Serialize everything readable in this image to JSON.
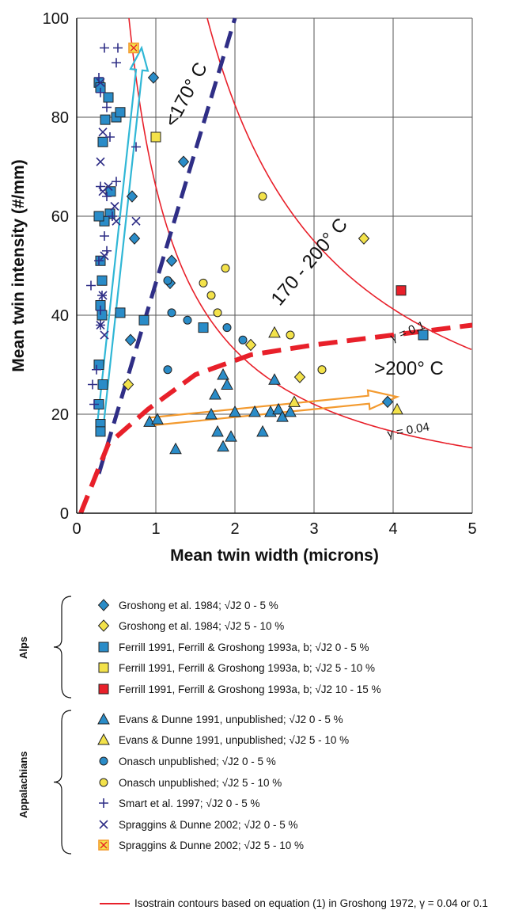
{
  "chart_data": {
    "type": "scatter",
    "xlabel": "Mean twin width (microns)",
    "ylabel": "Mean twin intensity (#/mm)",
    "xlim": [
      0,
      5
    ],
    "ylim": [
      0,
      100
    ],
    "xticks": [
      "0",
      "1",
      "2",
      "3",
      "4",
      "5"
    ],
    "yticks": [
      "0",
      "20",
      "40",
      "60",
      "80",
      "100"
    ],
    "grid": true,
    "annotations": [
      {
        "id": "lt170",
        "text": "<170° C",
        "x": 1.45,
        "y": 84,
        "rotate": -62
      },
      {
        "id": "170-200",
        "text": "170 - 200° C",
        "x": 3.0,
        "y": 50,
        "rotate": -50
      },
      {
        "id": "gt200",
        "text": ">200° C",
        "x": 4.2,
        "y": 28,
        "rotate": 0
      },
      {
        "id": "gamma01",
        "text": "γ = 0.1",
        "x": 4.2,
        "y": 36,
        "rotate": -22
      },
      {
        "id": "gamma004",
        "text": "γ = 0.04",
        "x": 4.2,
        "y": 16,
        "rotate": -10
      }
    ],
    "series": [
      {
        "name": "Groshong et al. 1984; √J2 0 - 5 %",
        "marker": "diamond",
        "color": "#2a8cc8",
        "points": [
          [
            0.97,
            88
          ],
          [
            1.35,
            71
          ],
          [
            0.7,
            64
          ],
          [
            0.73,
            55.5
          ],
          [
            1.2,
            51
          ],
          [
            1.18,
            46.5
          ],
          [
            0.68,
            35
          ],
          [
            3.93,
            22.5
          ]
        ]
      },
      {
        "name": "Groshong et al. 1984; √J2 5 - 10 %",
        "marker": "diamond",
        "color": "#f3e24a",
        "points": [
          [
            3.63,
            55.5
          ],
          [
            2.2,
            34
          ],
          [
            0.65,
            26
          ],
          [
            2.82,
            27.5
          ]
        ]
      },
      {
        "name": "Ferrill 1991, Ferrill & Groshong 1993a, b; √J2 0 - 5 %",
        "marker": "square",
        "color": "#2a8cc8",
        "points": [
          [
            0.28,
            87
          ],
          [
            0.3,
            86
          ],
          [
            0.4,
            84
          ],
          [
            0.5,
            80
          ],
          [
            0.55,
            81
          ],
          [
            0.36,
            79.5
          ],
          [
            0.33,
            75
          ],
          [
            0.43,
            65
          ],
          [
            0.42,
            60.5
          ],
          [
            0.35,
            59
          ],
          [
            0.28,
            60
          ],
          [
            0.32,
            47
          ],
          [
            0.3,
            51
          ],
          [
            0.3,
            42
          ],
          [
            0.32,
            40
          ],
          [
            0.28,
            30
          ],
          [
            0.33,
            26
          ],
          [
            0.28,
            22
          ],
          [
            0.3,
            18
          ],
          [
            0.3,
            16.5
          ],
          [
            0.55,
            40.5
          ],
          [
            0.85,
            39
          ],
          [
            1.6,
            37.5
          ],
          [
            4.38,
            36
          ]
        ]
      },
      {
        "name": "Ferrill 1991, Ferrill & Groshong 1993a, b; √J2 5 - 10 %",
        "marker": "square",
        "color": "#f3e24a",
        "points": [
          [
            1.0,
            76
          ]
        ]
      },
      {
        "name": "Ferrill 1991, Ferrill & Groshong 1993a, b; √J2 10 - 15 %",
        "marker": "square",
        "color": "#e8202a",
        "points": [
          [
            4.1,
            45
          ]
        ]
      },
      {
        "name": "Evans & Dunne 1991, unpublished; √J2 0 - 5 %",
        "marker": "triangle",
        "color": "#2a8cc8",
        "points": [
          [
            0.92,
            18.5
          ],
          [
            1.02,
            19
          ],
          [
            1.25,
            13
          ],
          [
            1.7,
            20
          ],
          [
            1.75,
            24
          ],
          [
            1.78,
            16.5
          ],
          [
            1.85,
            28
          ],
          [
            1.9,
            26
          ],
          [
            1.85,
            13.5
          ],
          [
            1.95,
            15.5
          ],
          [
            2.0,
            20.5
          ],
          [
            2.25,
            20.5
          ],
          [
            2.35,
            16.5
          ],
          [
            2.45,
            20.5
          ],
          [
            2.5,
            27
          ],
          [
            2.55,
            21
          ],
          [
            2.6,
            19.5
          ],
          [
            2.7,
            20.5
          ]
        ]
      },
      {
        "name": "Evans & Dunne 1991, unpublished; √J2 5 - 10 %",
        "marker": "triangle",
        "color": "#f3e24a",
        "points": [
          [
            2.5,
            36.5
          ],
          [
            2.75,
            22.5
          ],
          [
            4.05,
            21
          ]
        ]
      },
      {
        "name": "Onasch unpublished; √J2 0 - 5 %",
        "marker": "circle",
        "color": "#2a8cc8",
        "points": [
          [
            1.15,
            47
          ],
          [
            1.2,
            40.5
          ],
          [
            1.4,
            39
          ],
          [
            1.9,
            37.5
          ],
          [
            2.1,
            35
          ],
          [
            1.15,
            29
          ]
        ]
      },
      {
        "name": "Onasch unpublished; √J2 5 - 10 %",
        "marker": "circle",
        "color": "#f3e24a",
        "points": [
          [
            2.35,
            64
          ],
          [
            1.88,
            49.5
          ],
          [
            1.6,
            46.5
          ],
          [
            1.7,
            44
          ],
          [
            1.78,
            40.5
          ],
          [
            2.7,
            36
          ],
          [
            3.1,
            29
          ]
        ]
      },
      {
        "name": "Smart et al. 1997; √J2 0 - 5 %",
        "marker": "plus",
        "color": "#2f2e86",
        "points": [
          [
            0.35,
            94
          ],
          [
            0.52,
            94
          ],
          [
            0.5,
            91
          ],
          [
            0.28,
            88
          ],
          [
            0.3,
            85
          ],
          [
            0.38,
            82
          ],
          [
            0.42,
            76
          ],
          [
            0.75,
            74
          ],
          [
            0.3,
            66
          ],
          [
            0.38,
            64
          ],
          [
            0.5,
            67
          ],
          [
            0.45,
            60
          ],
          [
            0.35,
            56
          ],
          [
            0.38,
            53
          ],
          [
            0.28,
            51
          ],
          [
            0.18,
            46
          ],
          [
            0.32,
            44
          ],
          [
            0.3,
            41
          ],
          [
            0.3,
            38
          ],
          [
            0.25,
            29
          ],
          [
            0.2,
            26
          ],
          [
            0.22,
            22
          ]
        ]
      },
      {
        "name": "Spraggins & Dunne 2002; √J2 0 - 5 %",
        "marker": "x",
        "color": "#2f2e86",
        "points": [
          [
            0.3,
            87
          ],
          [
            0.33,
            77
          ],
          [
            0.3,
            71
          ],
          [
            0.33,
            65
          ],
          [
            0.4,
            66
          ],
          [
            0.48,
            62
          ],
          [
            0.5,
            59
          ],
          [
            0.75,
            59
          ],
          [
            0.35,
            52
          ],
          [
            0.33,
            44
          ],
          [
            0.3,
            38
          ],
          [
            0.35,
            36
          ]
        ]
      },
      {
        "name": "Spraggins & Dunne 2002; √J2 5 - 10 %",
        "marker": "boxx",
        "color": "#f39a2f",
        "points": [
          [
            0.72,
            94
          ]
        ]
      }
    ],
    "legend_groups": [
      {
        "label": "Alps",
        "entries": [
          "Groshong et al. 1984; √J2  0 - 5 %",
          "Groshong et al. 1984; √J2  5 - 10 %",
          "Ferrill 1991, Ferrill & Groshong 1993a, b; √J2  0 - 5 %",
          "Ferrill 1991, Ferrill & Groshong 1993a, b; √J2  5 - 10 %",
          "Ferrill 1991, Ferrill & Groshong 1993a, b; √J2  10 - 15 %"
        ]
      },
      {
        "label": "Appalachians",
        "entries": [
          "Evans & Dunne 1991, unpublished; √J2  0 - 5 %",
          "Evans & Dunne 1991, unpublished; √J2  5 - 10 %",
          "Onasch unpublished; √J2  0 - 5 %",
          "Onasch unpublished; √J2  5 - 10 %",
          "Smart et al. 1997; √J2  0 - 5 %",
          "Spraggins & Dunne 2002; √J2  0 - 5 %",
          "Spraggins & Dunne 2002; √J2  5 - 10 %"
        ]
      }
    ],
    "isostrain_label": "Isostrain contours based on equation (1) in Groshong 1972, γ = 0.04 or 0.1",
    "curves": {
      "isostrain": [
        {
          "gamma": 0.1,
          "k": 165
        },
        {
          "gamma": 0.04,
          "k": 66
        }
      ],
      "lt170_line": [
        [
          0.28,
          8
        ],
        [
          2.0,
          100
        ]
      ],
      "red_dashed": [
        [
          0.05,
          0
        ],
        [
          0.4,
          14
        ],
        [
          0.9,
          21
        ],
        [
          1.5,
          28
        ],
        [
          2.2,
          32
        ],
        [
          3.0,
          34
        ],
        [
          4.0,
          36
        ],
        [
          5.0,
          38
        ]
      ]
    },
    "colors": {
      "blue": "#2a8cc8",
      "yellow": "#f3e24a",
      "red": "#e8202a",
      "navy": "#2f2e86",
      "orange": "#f39a2f",
      "cyan": "#30b7d6"
    }
  }
}
